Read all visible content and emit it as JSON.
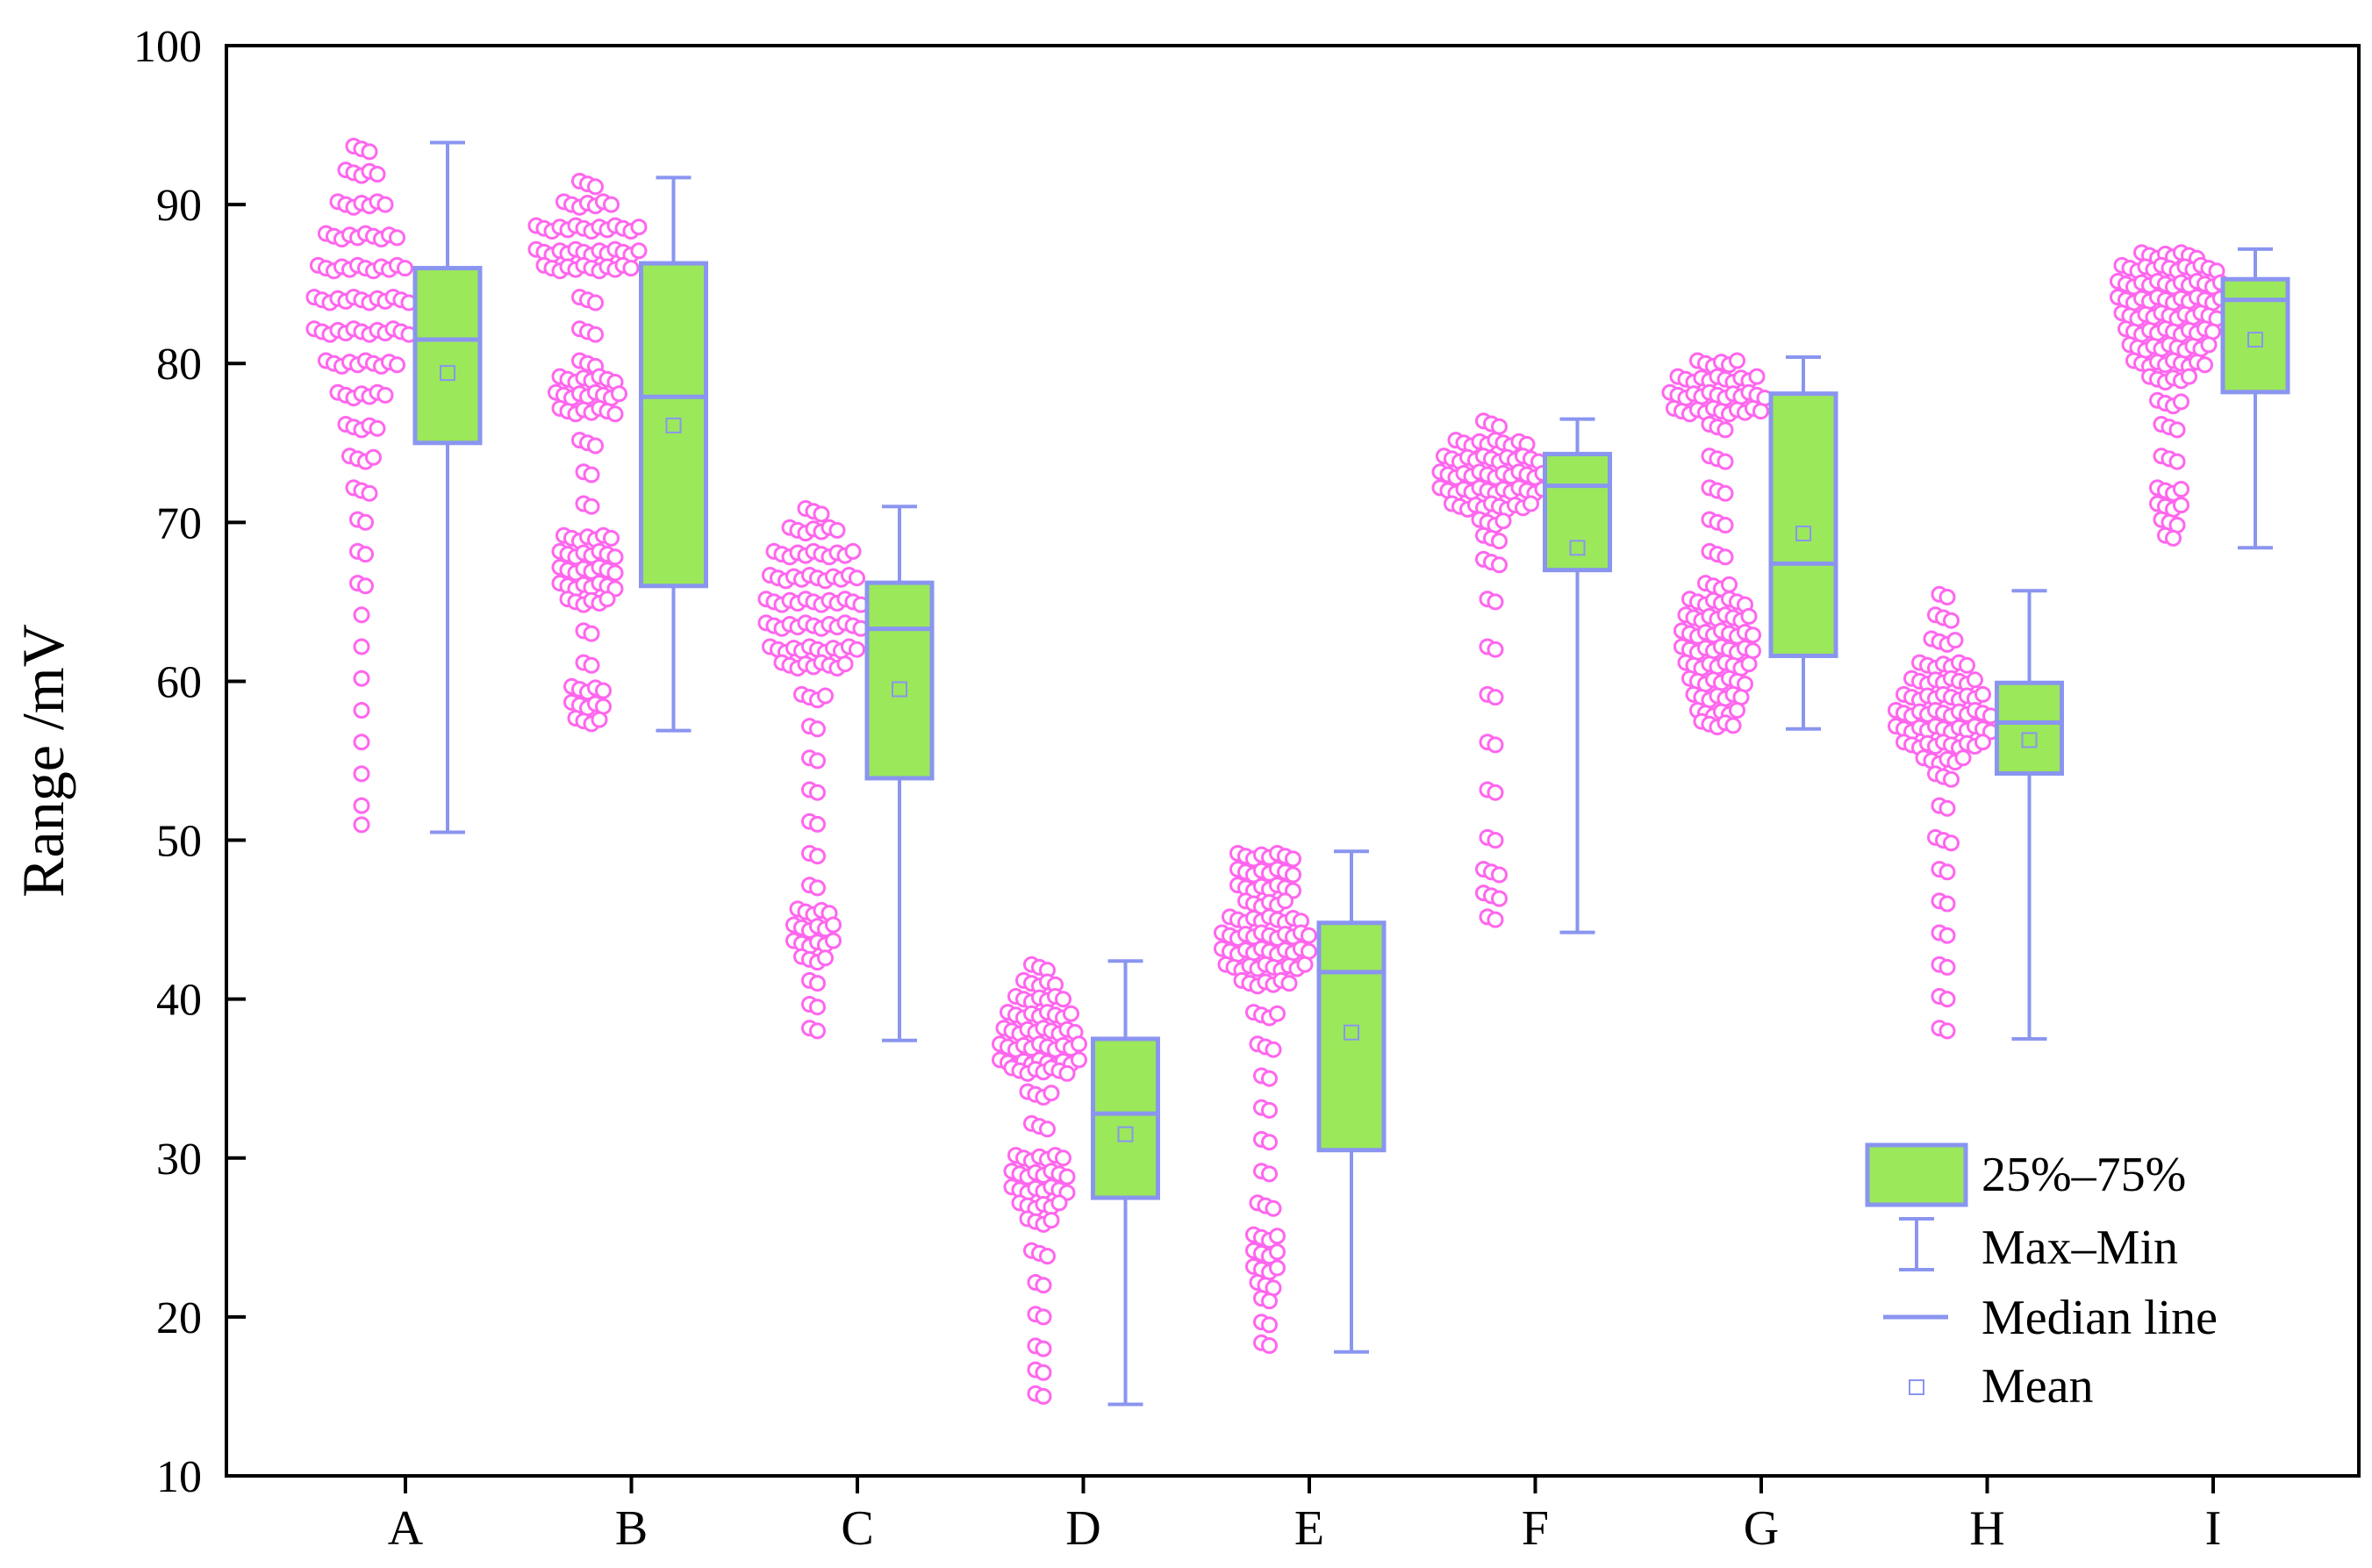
{
  "chart_data": {
    "type": "box",
    "xlabel": "",
    "ylabel": "Range /mV",
    "ylim": [
      10,
      100
    ],
    "yticks": [
      10,
      20,
      30,
      40,
      50,
      60,
      70,
      80,
      90,
      100
    ],
    "categories": [
      "A",
      "B",
      "C",
      "D",
      "E",
      "F",
      "G",
      "H",
      "I"
    ],
    "boxes": [
      {
        "category": "A",
        "min": 50.5,
        "q1": 75.0,
        "median": 81.5,
        "q3": 86.0,
        "max": 93.9,
        "mean": 79.4
      },
      {
        "category": "B",
        "min": 56.9,
        "q1": 66.0,
        "median": 77.9,
        "q3": 86.3,
        "max": 91.7,
        "mean": 76.1
      },
      {
        "category": "C",
        "min": 37.4,
        "q1": 53.9,
        "median": 63.3,
        "q3": 66.2,
        "max": 71.0,
        "mean": 59.5
      },
      {
        "category": "D",
        "min": 14.5,
        "q1": 27.5,
        "median": 32.8,
        "q3": 37.5,
        "max": 42.4,
        "mean": 31.5
      },
      {
        "category": "E",
        "min": 17.8,
        "q1": 30.5,
        "median": 41.7,
        "q3": 44.8,
        "max": 49.3,
        "mean": 37.9
      },
      {
        "category": "F",
        "min": 44.2,
        "q1": 67.0,
        "median": 72.3,
        "q3": 74.3,
        "max": 76.5,
        "mean": 68.4
      },
      {
        "category": "G",
        "min": 57.0,
        "q1": 61.6,
        "median": 67.4,
        "q3": 78.1,
        "max": 80.4,
        "mean": 69.3
      },
      {
        "category": "H",
        "min": 37.5,
        "q1": 54.2,
        "median": 57.4,
        "q3": 59.9,
        "max": 65.7,
        "mean": 56.3
      },
      {
        "category": "I",
        "min": 68.4,
        "q1": 78.2,
        "median": 84.0,
        "q3": 85.3,
        "max": 87.2,
        "mean": 81.5
      }
    ],
    "point_distributions": [
      {
        "category": "A",
        "groups": [
          [
            93.5,
            3
          ],
          [
            92,
            5
          ],
          [
            90,
            7
          ],
          [
            88,
            10
          ],
          [
            86,
            12
          ],
          [
            84,
            13
          ],
          [
            82,
            13
          ],
          [
            80,
            10
          ],
          [
            78,
            7
          ],
          [
            76,
            5
          ],
          [
            74,
            4
          ],
          [
            72,
            3
          ],
          [
            70,
            2
          ],
          [
            68,
            2
          ],
          [
            66,
            2
          ],
          [
            64,
            1
          ],
          [
            62,
            1
          ],
          [
            60,
            1
          ],
          [
            58,
            1
          ],
          [
            56,
            1
          ],
          [
            54,
            1
          ],
          [
            52,
            1
          ],
          [
            50.8,
            1
          ]
        ]
      },
      {
        "category": "B",
        "groups": [
          [
            91.3,
            3
          ],
          [
            90,
            7
          ],
          [
            88.5,
            14
          ],
          [
            87,
            14
          ],
          [
            86,
            12
          ],
          [
            84,
            3
          ],
          [
            82,
            3
          ],
          [
            80,
            3
          ],
          [
            79,
            8
          ],
          [
            78,
            9
          ],
          [
            77,
            8
          ],
          [
            75,
            3
          ],
          [
            73,
            2
          ],
          [
            71,
            2
          ],
          [
            69,
            7
          ],
          [
            68,
            8
          ],
          [
            67,
            8
          ],
          [
            66,
            8
          ],
          [
            65,
            6
          ],
          [
            63,
            2
          ],
          [
            61,
            2
          ],
          [
            59.5,
            5
          ],
          [
            58.5,
            5
          ],
          [
            57.5,
            4
          ]
        ]
      },
      {
        "category": "C",
        "groups": [
          [
            70.7,
            3
          ],
          [
            69.5,
            7
          ],
          [
            68,
            11
          ],
          [
            66.5,
            12
          ],
          [
            65,
            13
          ],
          [
            63.5,
            13
          ],
          [
            62,
            12
          ],
          [
            61,
            9
          ],
          [
            59,
            4
          ],
          [
            57,
            2
          ],
          [
            55,
            2
          ],
          [
            53,
            2
          ],
          [
            51,
            2
          ],
          [
            49,
            2
          ],
          [
            47,
            2
          ],
          [
            45.5,
            5
          ],
          [
            44.5,
            6
          ],
          [
            43.5,
            6
          ],
          [
            42.5,
            4
          ],
          [
            41,
            2
          ],
          [
            39.5,
            2
          ],
          [
            38,
            2
          ]
        ]
      },
      {
        "category": "D",
        "groups": [
          [
            42,
            3
          ],
          [
            41,
            5
          ],
          [
            40,
            7
          ],
          [
            39,
            9
          ],
          [
            38,
            10
          ],
          [
            37,
            11
          ],
          [
            36,
            11
          ],
          [
            35.5,
            8
          ],
          [
            34,
            4
          ],
          [
            32,
            3
          ],
          [
            30,
            7
          ],
          [
            29,
            8
          ],
          [
            28,
            8
          ],
          [
            27,
            6
          ],
          [
            26,
            4
          ],
          [
            24,
            3
          ],
          [
            22,
            2
          ],
          [
            20,
            2
          ],
          [
            18,
            2
          ],
          [
            16.5,
            2
          ],
          [
            15,
            2
          ]
        ]
      },
      {
        "category": "E",
        "groups": [
          [
            49,
            8
          ],
          [
            48,
            8
          ],
          [
            47,
            8
          ],
          [
            46,
            6
          ],
          [
            45,
            10
          ],
          [
            44,
            12
          ],
          [
            43,
            12
          ],
          [
            42,
            11
          ],
          [
            41,
            7
          ],
          [
            39,
            4
          ],
          [
            37,
            3
          ],
          [
            35,
            2
          ],
          [
            33,
            2
          ],
          [
            31,
            2
          ],
          [
            29,
            2
          ],
          [
            27,
            3
          ],
          [
            25,
            4
          ],
          [
            24,
            4
          ],
          [
            23,
            4
          ],
          [
            22,
            3
          ],
          [
            21,
            2
          ],
          [
            19.5,
            2
          ],
          [
            18.2,
            2
          ]
        ]
      },
      {
        "category": "F",
        "groups": [
          [
            76.2,
            3
          ],
          [
            75,
            10
          ],
          [
            74,
            13
          ],
          [
            73,
            14
          ],
          [
            72,
            14
          ],
          [
            71,
            11
          ],
          [
            70,
            4
          ],
          [
            69,
            3
          ],
          [
            67.5,
            3
          ],
          [
            65,
            2
          ],
          [
            62,
            2
          ],
          [
            59,
            2
          ],
          [
            56,
            2
          ],
          [
            53,
            2
          ],
          [
            50,
            2
          ],
          [
            48,
            3
          ],
          [
            46.5,
            3
          ],
          [
            45,
            2
          ]
        ]
      },
      {
        "category": "G",
        "groups": [
          [
            80,
            6
          ],
          [
            79,
            11
          ],
          [
            78,
            13
          ],
          [
            77,
            12
          ],
          [
            76,
            3
          ],
          [
            74,
            3
          ],
          [
            72,
            3
          ],
          [
            70,
            3
          ],
          [
            68,
            3
          ],
          [
            66,
            4
          ],
          [
            65,
            8
          ],
          [
            64,
            9
          ],
          [
            63,
            10
          ],
          [
            62,
            10
          ],
          [
            61,
            9
          ],
          [
            60,
            8
          ],
          [
            59,
            7
          ],
          [
            58,
            6
          ],
          [
            57.3,
            5
          ]
        ]
      },
      {
        "category": "H",
        "groups": [
          [
            65.3,
            2
          ],
          [
            64,
            3
          ],
          [
            62.5,
            4
          ],
          [
            61,
            7
          ],
          [
            60,
            9
          ],
          [
            59,
            11
          ],
          [
            58,
            13
          ],
          [
            57,
            13
          ],
          [
            56,
            11
          ],
          [
            55,
            6
          ],
          [
            54,
            3
          ],
          [
            52,
            2
          ],
          [
            50,
            3
          ],
          [
            48,
            2
          ],
          [
            46,
            2
          ],
          [
            44,
            2
          ],
          [
            42,
            2
          ],
          [
            40,
            2
          ],
          [
            38,
            2
          ]
        ]
      },
      {
        "category": "I",
        "groups": [
          [
            86.8,
            8
          ],
          [
            86,
            13
          ],
          [
            85,
            14
          ],
          [
            84,
            14
          ],
          [
            83,
            13
          ],
          [
            82,
            12
          ],
          [
            81,
            11
          ],
          [
            80,
            10
          ],
          [
            79,
            6
          ],
          [
            77.5,
            4
          ],
          [
            76,
            3
          ],
          [
            74,
            3
          ],
          [
            72,
            4
          ],
          [
            71,
            4
          ],
          [
            70,
            3
          ],
          [
            69,
            2
          ]
        ]
      }
    ],
    "legend": {
      "position": "bottom-right",
      "entries": [
        {
          "kind": "box",
          "label": "25%–75%"
        },
        {
          "kind": "whisker",
          "label": "Max–Min"
        },
        {
          "kind": "median",
          "label": "Median line"
        },
        {
          "kind": "mean",
          "label": "Mean"
        }
      ]
    },
    "colors": {
      "box_fill": "#9be85a",
      "box_stroke": "#8a95f0",
      "points": "#ff66ee",
      "axis": "#000000"
    },
    "grid": false
  }
}
